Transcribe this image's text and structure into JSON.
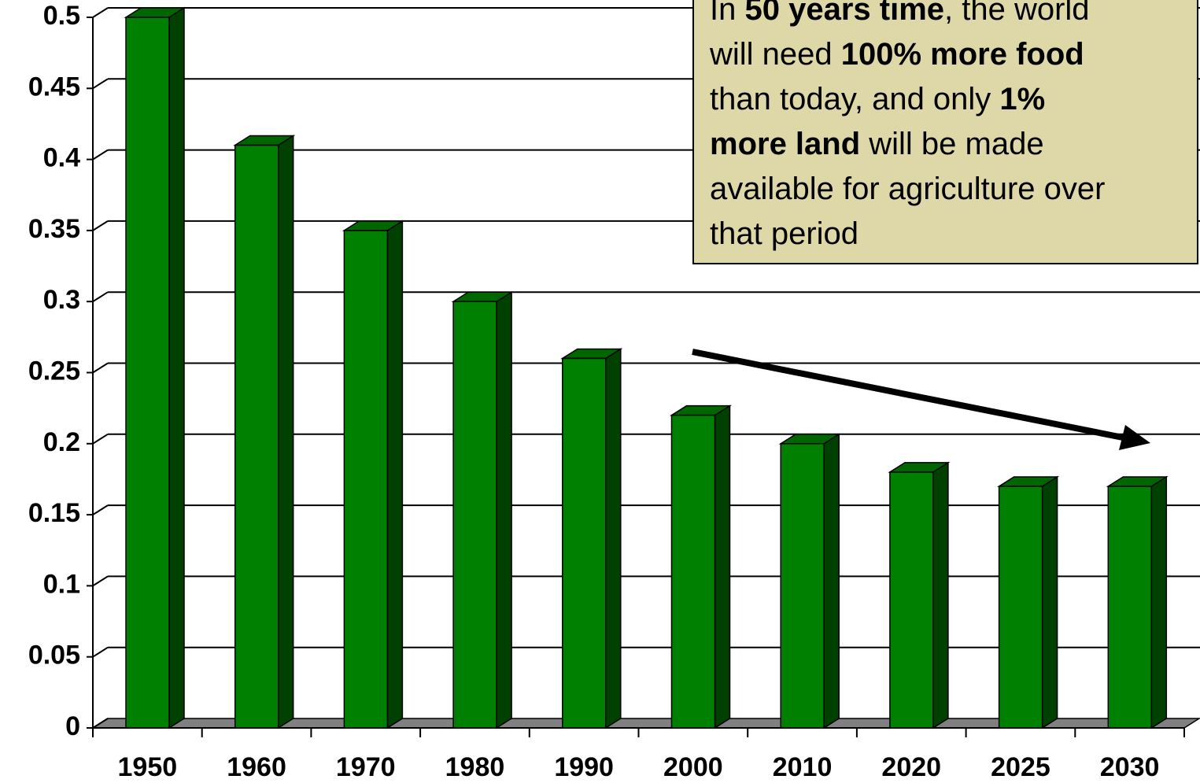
{
  "chart_data": {
    "type": "bar3d",
    "categories": [
      "1950",
      "1960",
      "1970",
      "1980",
      "1990",
      "2000",
      "2010",
      "2020",
      "2025",
      "2030"
    ],
    "values": [
      0.5,
      0.41,
      0.35,
      0.3,
      0.26,
      0.22,
      0.2,
      0.18,
      0.17,
      0.17
    ],
    "color": "#008000",
    "side_color": "#004000",
    "top_color": "#006600",
    "ylim": [
      0,
      0.5
    ],
    "yticks": [
      0,
      0.05,
      0.1,
      0.15,
      0.2,
      0.25,
      0.3,
      0.35,
      0.4,
      0.45,
      0.5
    ],
    "grid": true,
    "annotation": {
      "lines": [
        [
          {
            "text": "In ",
            "bold": false
          },
          {
            "text": "50 years time",
            "bold": true
          },
          {
            "text": ", the world",
            "bold": false
          }
        ],
        [
          {
            "text": "will need ",
            "bold": false
          },
          {
            "text": "100% more food",
            "bold": true
          }
        ],
        [
          {
            "text": "than today, and only ",
            "bold": false
          },
          {
            "text": "1%",
            "bold": true
          }
        ],
        [
          {
            "text": "more land",
            "bold": true
          },
          {
            "text": " will be made",
            "bold": false
          }
        ],
        [
          {
            "text": "available for agriculture over",
            "bold": false
          }
        ],
        [
          {
            "text": "that period",
            "bold": false
          }
        ]
      ]
    }
  }
}
